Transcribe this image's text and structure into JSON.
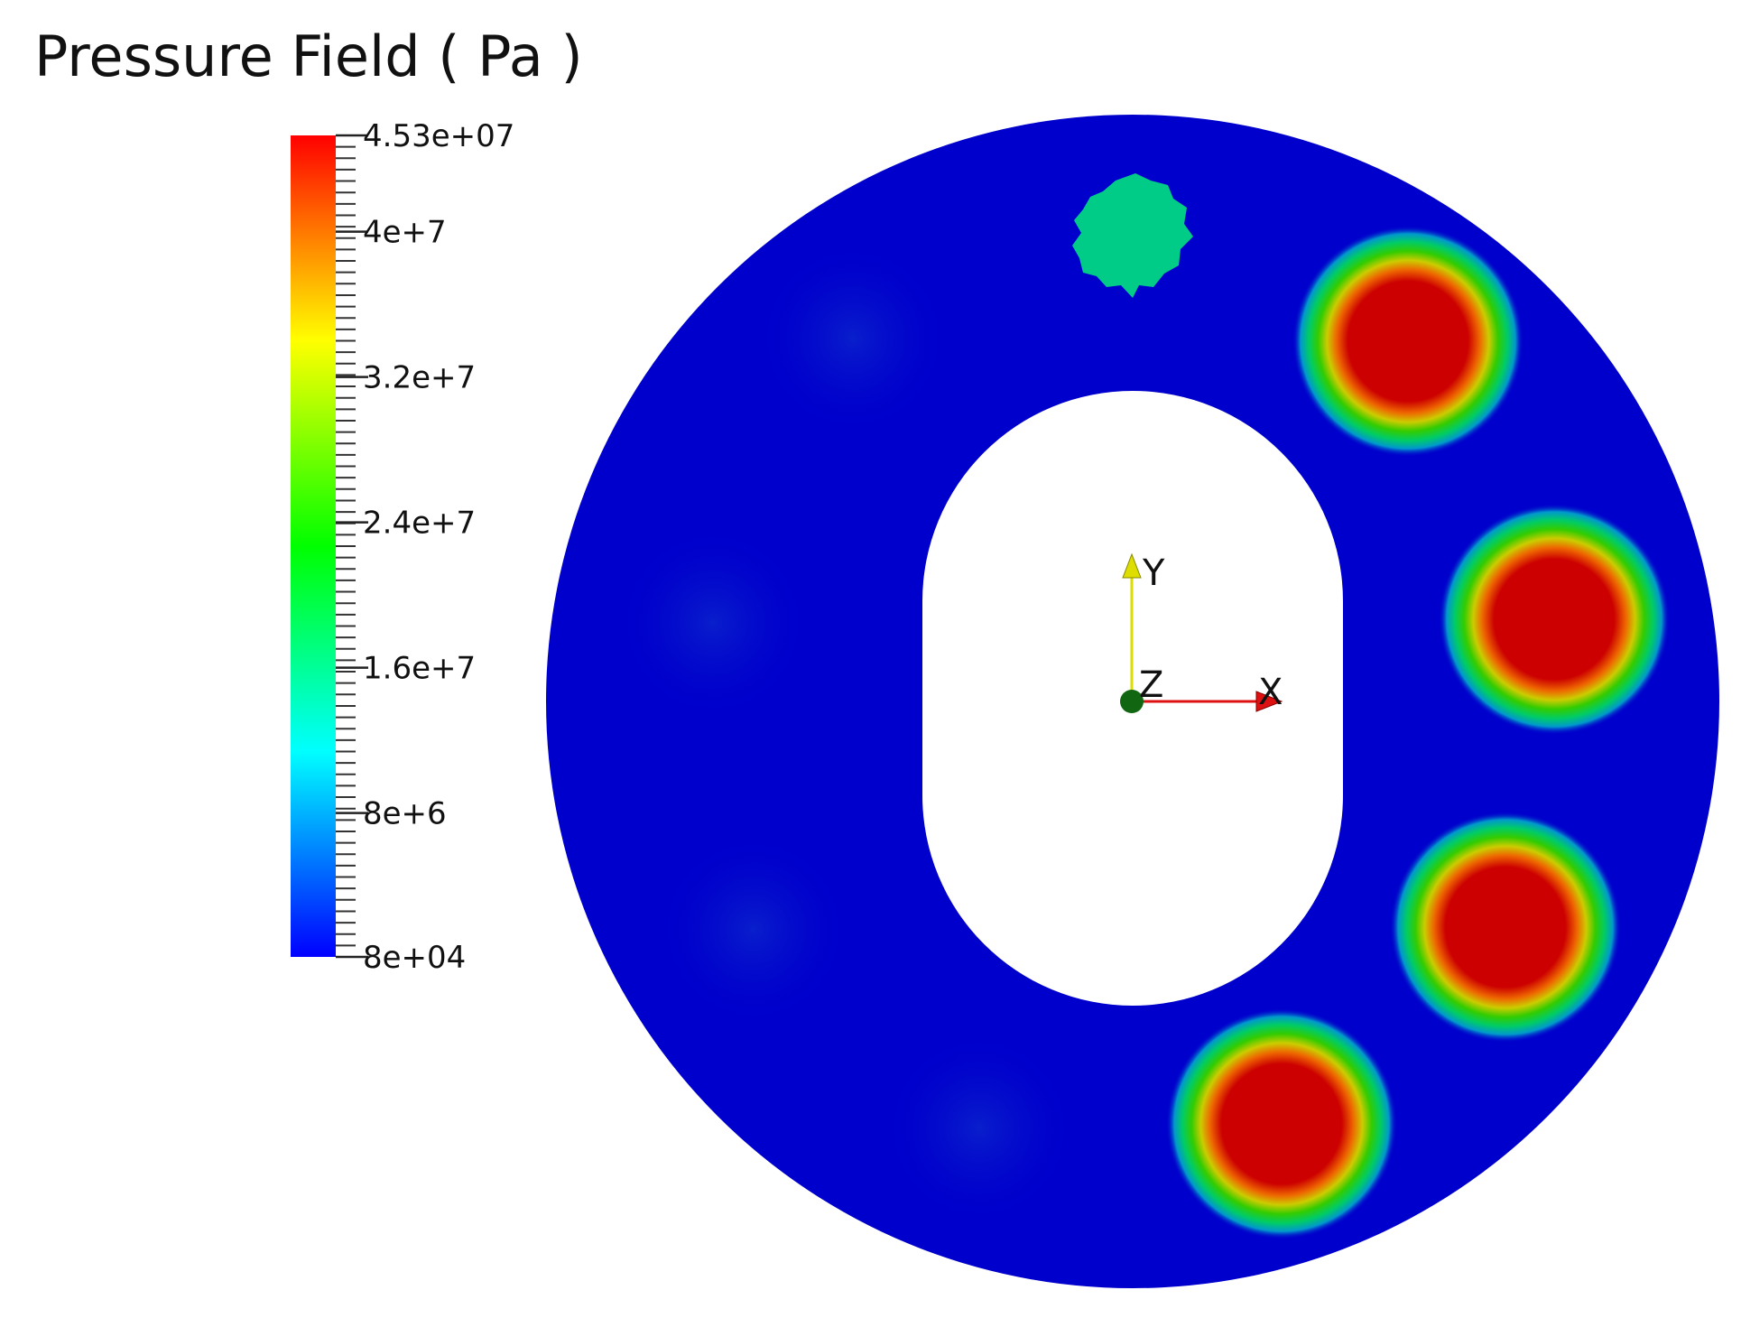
{
  "title": "Pressure Field ( Pa )",
  "colorbar": {
    "min": 80000,
    "max": 45300000,
    "tick_labels": [
      {
        "text": "4.53e+07",
        "value": 45300000
      },
      {
        "text": "4e+7",
        "value": 40000000
      },
      {
        "text": "3.2e+7",
        "value": 32000000
      },
      {
        "text": "2.4e+7",
        "value": 24000000
      },
      {
        "text": "1.6e+7",
        "value": 16000000
      },
      {
        "text": "8e+6",
        "value": 8000000
      },
      {
        "text": "8e+04",
        "value": 80000
      }
    ],
    "colors": [
      "#0000ff",
      "#0080ff",
      "#00ffff",
      "#00ff80",
      "#00ff00",
      "#80ff00",
      "#ffff00",
      "#ff8000",
      "#ff0000"
    ]
  },
  "axes": {
    "x_label": "X",
    "y_label": "Y",
    "z_label": "Z",
    "x_color": "#dd1111",
    "y_color": "#dddd00",
    "z_color": "#116611"
  },
  "field": {
    "background_color": "#0000cc",
    "hole_color": "#ffffff",
    "high_pressure_spots": 4,
    "medium_spot_value": 18000000
  }
}
